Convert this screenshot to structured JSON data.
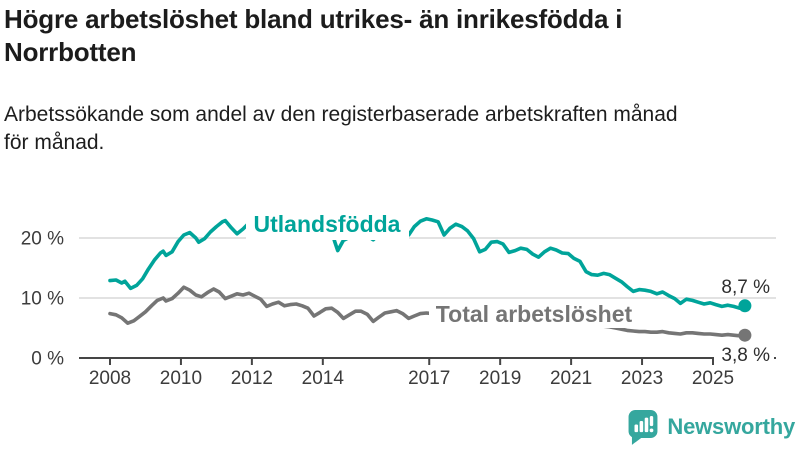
{
  "header": {
    "title": "Högre arbetslöshet bland utrikes- än inrikesfödda i Norrbotten",
    "title_lines": [
      "Högre arbetslöshet bland utrikes- än inrikesfödda i",
      "Norrbotten"
    ],
    "subtitle": "Arbetssökande som andel av den registerbaserade arbetskraften månad för månad.",
    "subtitle_lines": [
      "Arbetssökande som andel av den registerbaserade arbetskraften månad",
      "för månad."
    ]
  },
  "logo": {
    "text": "Newsworthy",
    "color": "#35a79e",
    "icon": "bar-chart-speech-bubble-icon"
  },
  "chart_data": {
    "type": "line",
    "title": "Högre arbetslöshet bland utrikes- än inrikesfödda i Norrbotten",
    "subtitle": "Arbetssökande som andel av den registerbaserade arbetskraften månad för månad.",
    "xlabel": "",
    "ylabel": "",
    "x_unit": "decimal-year (monthly data)",
    "xlim": [
      2007.8,
      2026.2
    ],
    "ylim": [
      0,
      25
    ],
    "grid": "horizontal",
    "legend": "inline-labels-on-lines",
    "xticks": [
      2008,
      2010,
      2012,
      2014,
      2017,
      2019,
      2021,
      2023,
      2025
    ],
    "yticks": [
      {
        "value": 0,
        "label": "0 %"
      },
      {
        "value": 10,
        "label": "10 %"
      },
      {
        "value": 20,
        "label": "20 %"
      }
    ],
    "series": [
      {
        "name": "Utlandsfödda",
        "color": "#00a49a",
        "end_label": "8,7 %",
        "end_value": 8.7,
        "points": [
          [
            2008.0,
            12.9
          ],
          [
            2008.17,
            13.0
          ],
          [
            2008.33,
            12.5
          ],
          [
            2008.42,
            12.8
          ],
          [
            2008.58,
            11.6
          ],
          [
            2008.75,
            12.1
          ],
          [
            2008.92,
            13.2
          ],
          [
            2009.08,
            14.8
          ],
          [
            2009.25,
            16.3
          ],
          [
            2009.42,
            17.5
          ],
          [
            2009.5,
            17.8
          ],
          [
            2009.58,
            17.1
          ],
          [
            2009.75,
            17.7
          ],
          [
            2009.92,
            19.4
          ],
          [
            2010.08,
            20.5
          ],
          [
            2010.25,
            20.9
          ],
          [
            2010.42,
            20.0
          ],
          [
            2010.5,
            19.3
          ],
          [
            2010.67,
            19.9
          ],
          [
            2010.83,
            21.0
          ],
          [
            2011.0,
            21.9
          ],
          [
            2011.17,
            22.7
          ],
          [
            2011.25,
            22.9
          ],
          [
            2011.42,
            21.7
          ],
          [
            2011.58,
            20.7
          ],
          [
            2011.75,
            21.5
          ],
          [
            2011.92,
            22.5
          ],
          [
            2012.08,
            23.3
          ],
          [
            2012.17,
            23.6
          ],
          [
            2012.33,
            22.9
          ],
          [
            2012.5,
            22.3
          ],
          [
            2012.67,
            22.7
          ],
          [
            2012.83,
            23.2
          ],
          [
            2013.0,
            23.6
          ],
          [
            2013.17,
            23.9
          ],
          [
            2013.33,
            23.2
          ],
          [
            2013.5,
            22.4
          ],
          [
            2013.67,
            22.8
          ],
          [
            2013.83,
            23.3
          ],
          [
            2014.0,
            23.6
          ],
          [
            2014.17,
            22.8
          ],
          [
            2014.33,
            19.5
          ],
          [
            2014.42,
            17.9
          ],
          [
            2014.58,
            19.6
          ],
          [
            2014.75,
            20.1
          ],
          [
            2014.92,
            20.7
          ],
          [
            2015.08,
            21.1
          ],
          [
            2015.25,
            20.4
          ],
          [
            2015.42,
            19.7
          ],
          [
            2015.58,
            20.6
          ],
          [
            2015.75,
            21.3
          ],
          [
            2015.92,
            22.1
          ],
          [
            2016.08,
            22.7
          ],
          [
            2016.25,
            22.9
          ],
          [
            2016.33,
            21.9
          ],
          [
            2016.42,
            20.5
          ],
          [
            2016.58,
            21.9
          ],
          [
            2016.75,
            22.8
          ],
          [
            2016.92,
            23.2
          ],
          [
            2017.08,
            23.0
          ],
          [
            2017.25,
            22.7
          ],
          [
            2017.42,
            20.5
          ],
          [
            2017.58,
            21.6
          ],
          [
            2017.75,
            22.3
          ],
          [
            2017.92,
            21.9
          ],
          [
            2018.08,
            21.2
          ],
          [
            2018.25,
            19.9
          ],
          [
            2018.42,
            17.7
          ],
          [
            2018.58,
            18.1
          ],
          [
            2018.75,
            19.3
          ],
          [
            2018.92,
            19.4
          ],
          [
            2019.08,
            19.0
          ],
          [
            2019.25,
            17.6
          ],
          [
            2019.42,
            17.9
          ],
          [
            2019.58,
            18.3
          ],
          [
            2019.75,
            18.1
          ],
          [
            2019.92,
            17.3
          ],
          [
            2020.08,
            16.8
          ],
          [
            2020.25,
            17.7
          ],
          [
            2020.42,
            18.3
          ],
          [
            2020.58,
            18.0
          ],
          [
            2020.75,
            17.5
          ],
          [
            2020.92,
            17.4
          ],
          [
            2021.08,
            16.6
          ],
          [
            2021.25,
            16.1
          ],
          [
            2021.42,
            14.4
          ],
          [
            2021.58,
            13.9
          ],
          [
            2021.75,
            13.8
          ],
          [
            2021.92,
            14.1
          ],
          [
            2022.08,
            13.9
          ],
          [
            2022.25,
            13.3
          ],
          [
            2022.42,
            12.7
          ],
          [
            2022.58,
            11.9
          ],
          [
            2022.75,
            11.1
          ],
          [
            2022.92,
            11.4
          ],
          [
            2023.08,
            11.3
          ],
          [
            2023.25,
            11.1
          ],
          [
            2023.42,
            10.7
          ],
          [
            2023.58,
            11.0
          ],
          [
            2023.75,
            10.4
          ],
          [
            2023.92,
            9.9
          ],
          [
            2024.08,
            9.1
          ],
          [
            2024.25,
            9.8
          ],
          [
            2024.42,
            9.6
          ],
          [
            2024.58,
            9.3
          ],
          [
            2024.75,
            9.0
          ],
          [
            2024.92,
            9.2
          ],
          [
            2025.08,
            8.9
          ],
          [
            2025.25,
            8.6
          ],
          [
            2025.42,
            8.8
          ],
          [
            2025.58,
            8.6
          ],
          [
            2025.75,
            8.3
          ],
          [
            2025.9,
            8.7
          ]
        ]
      },
      {
        "name": "Total arbetslöshet",
        "color": "#757575",
        "end_label": "3,8 %",
        "end_value": 3.8,
        "points": [
          [
            2008.0,
            7.4
          ],
          [
            2008.17,
            7.2
          ],
          [
            2008.33,
            6.7
          ],
          [
            2008.5,
            5.8
          ],
          [
            2008.67,
            6.2
          ],
          [
            2008.83,
            6.9
          ],
          [
            2009.0,
            7.7
          ],
          [
            2009.17,
            8.7
          ],
          [
            2009.33,
            9.6
          ],
          [
            2009.5,
            10.0
          ],
          [
            2009.58,
            9.5
          ],
          [
            2009.75,
            9.9
          ],
          [
            2009.92,
            10.8
          ],
          [
            2010.08,
            11.8
          ],
          [
            2010.25,
            11.3
          ],
          [
            2010.42,
            10.5
          ],
          [
            2010.58,
            10.2
          ],
          [
            2010.75,
            10.9
          ],
          [
            2010.92,
            11.5
          ],
          [
            2011.08,
            11.0
          ],
          [
            2011.25,
            9.9
          ],
          [
            2011.42,
            10.3
          ],
          [
            2011.58,
            10.7
          ],
          [
            2011.75,
            10.5
          ],
          [
            2011.92,
            10.8
          ],
          [
            2012.08,
            10.3
          ],
          [
            2012.25,
            9.8
          ],
          [
            2012.42,
            8.6
          ],
          [
            2012.58,
            9.0
          ],
          [
            2012.75,
            9.3
          ],
          [
            2012.92,
            8.7
          ],
          [
            2013.08,
            8.9
          ],
          [
            2013.25,
            9.0
          ],
          [
            2013.42,
            8.7
          ],
          [
            2013.58,
            8.3
          ],
          [
            2013.75,
            7.0
          ],
          [
            2013.92,
            7.6
          ],
          [
            2014.08,
            8.2
          ],
          [
            2014.25,
            8.3
          ],
          [
            2014.42,
            7.6
          ],
          [
            2014.58,
            6.6
          ],
          [
            2014.75,
            7.2
          ],
          [
            2014.92,
            7.8
          ],
          [
            2015.08,
            7.8
          ],
          [
            2015.25,
            7.3
          ],
          [
            2015.42,
            6.1
          ],
          [
            2015.58,
            6.8
          ],
          [
            2015.75,
            7.5
          ],
          [
            2015.92,
            7.7
          ],
          [
            2016.08,
            7.9
          ],
          [
            2016.25,
            7.4
          ],
          [
            2016.42,
            6.6
          ],
          [
            2016.58,
            7.0
          ],
          [
            2016.75,
            7.4
          ],
          [
            2016.92,
            7.5
          ],
          [
            2017.08,
            7.4
          ],
          [
            2017.25,
            7.3
          ],
          [
            2017.42,
            6.6
          ],
          [
            2017.58,
            6.9
          ],
          [
            2017.75,
            7.1
          ],
          [
            2017.92,
            7.0
          ],
          [
            2018.08,
            6.8
          ],
          [
            2018.25,
            6.4
          ],
          [
            2018.42,
            5.8
          ],
          [
            2018.58,
            6.0
          ],
          [
            2018.75,
            6.3
          ],
          [
            2018.92,
            6.4
          ],
          [
            2019.08,
            6.2
          ],
          [
            2019.25,
            5.9
          ],
          [
            2019.42,
            5.7
          ],
          [
            2019.58,
            6.0
          ],
          [
            2019.75,
            6.1
          ],
          [
            2019.92,
            5.9
          ],
          [
            2020.08,
            6.0
          ],
          [
            2020.25,
            7.0
          ],
          [
            2020.42,
            7.4
          ],
          [
            2020.58,
            7.2
          ],
          [
            2020.75,
            6.9
          ],
          [
            2020.92,
            6.7
          ],
          [
            2021.08,
            6.4
          ],
          [
            2021.25,
            6.1
          ],
          [
            2021.42,
            5.7
          ],
          [
            2021.58,
            5.5
          ],
          [
            2021.75,
            5.4
          ],
          [
            2021.92,
            5.3
          ],
          [
            2022.08,
            5.2
          ],
          [
            2022.25,
            5.0
          ],
          [
            2022.42,
            4.8
          ],
          [
            2022.58,
            4.6
          ],
          [
            2022.75,
            4.5
          ],
          [
            2022.92,
            4.4
          ],
          [
            2023.08,
            4.4
          ],
          [
            2023.25,
            4.3
          ],
          [
            2023.42,
            4.3
          ],
          [
            2023.58,
            4.4
          ],
          [
            2023.75,
            4.2
          ],
          [
            2023.92,
            4.1
          ],
          [
            2024.08,
            4.0
          ],
          [
            2024.25,
            4.2
          ],
          [
            2024.42,
            4.2
          ],
          [
            2024.58,
            4.1
          ],
          [
            2024.75,
            4.0
          ],
          [
            2024.92,
            4.0
          ],
          [
            2025.08,
            3.9
          ],
          [
            2025.25,
            3.8
          ],
          [
            2025.42,
            3.9
          ],
          [
            2025.58,
            3.8
          ],
          [
            2025.75,
            3.7
          ],
          [
            2025.9,
            3.8
          ]
        ]
      }
    ]
  }
}
